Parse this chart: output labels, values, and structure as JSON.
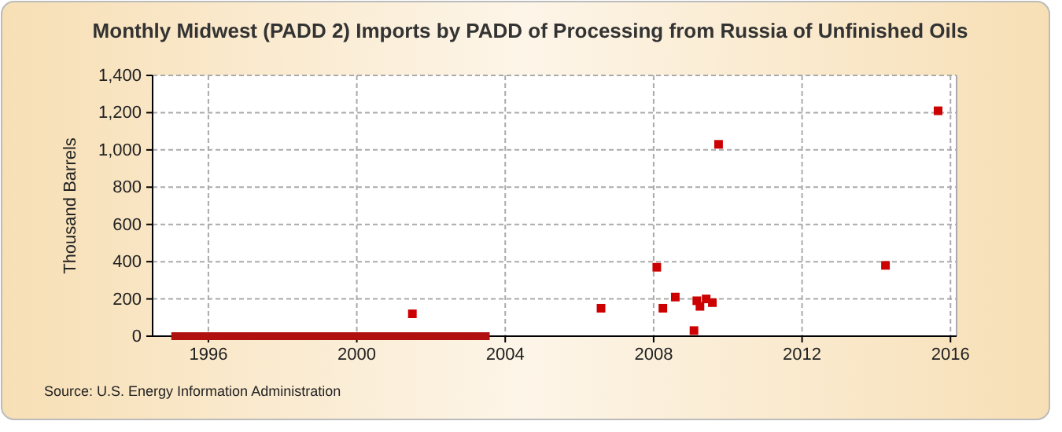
{
  "chart_data": {
    "type": "scatter",
    "title": "Monthly Midwest (PADD 2) Imports by PADD of Processing from Russia of Unfinished Oils",
    "ylabel": "Thousand Barrels",
    "annotations": [
      "Source: U.S. Energy Information Administration"
    ],
    "xlim": [
      "1994-07",
      "2016-03"
    ],
    "xticks": [
      "1996",
      "2000",
      "2004",
      "2008",
      "2012",
      "2016"
    ],
    "ylim": [
      0,
      1400
    ],
    "yticks": [
      0,
      {
        "value": 200,
        "label": "200"
      },
      {
        "value": 400,
        "label": "400"
      },
      {
        "value": 600,
        "label": "600"
      },
      {
        "value": 800,
        "label": "800"
      },
      {
        "value": 1000,
        "label": "1,000"
      },
      {
        "value": 1200,
        "label": "1,200"
      },
      {
        "value": 1400,
        "label": "1,400"
      }
    ],
    "grid": true,
    "marker": "square",
    "series": [
      {
        "type": "line",
        "marker": "none",
        "color": "#b01010",
        "x": [
          "1995-01",
          "2003-08"
        ],
        "values": [
          0,
          0
        ]
      },
      {
        "color": "#cc0000",
        "x": [
          "2001-07",
          "2006-08",
          "2008-02",
          "2008-04",
          "2008-08",
          "2009-02",
          "2009-03",
          "2009-04",
          "2009-06",
          "2009-08",
          "2009-10",
          "2014-04",
          "2015-09"
        ],
        "values": [
          120,
          150,
          370,
          150,
          210,
          30,
          190,
          160,
          200,
          180,
          1030,
          380,
          1210
        ]
      }
    ]
  }
}
